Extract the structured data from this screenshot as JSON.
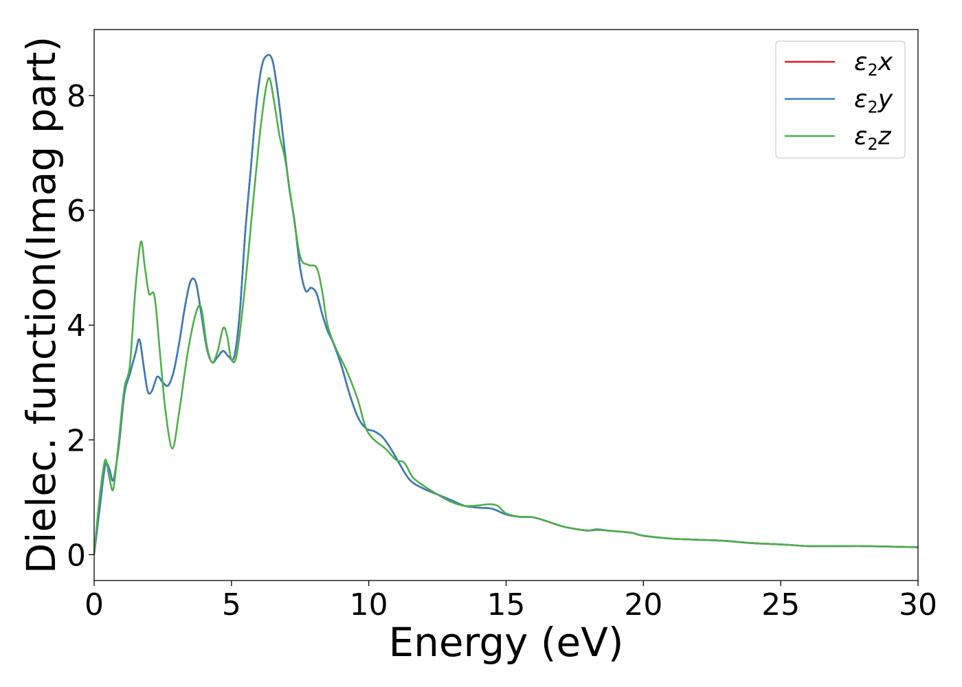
{
  "chart_data": {
    "type": "line",
    "title": "",
    "xlabel": "Energy (eV)",
    "ylabel": "Dielec. function(Imag part)",
    "xlim": [
      0,
      30
    ],
    "ylim": [
      -0.45,
      9.15
    ],
    "xticks": [
      0,
      5,
      10,
      15,
      20,
      25,
      30
    ],
    "xtick_labels": [
      "0",
      "5",
      "10",
      "15",
      "20",
      "25",
      "30"
    ],
    "yticks": [
      0,
      2,
      4,
      6,
      8
    ],
    "ytick_labels": [
      "0",
      "2",
      "4",
      "6",
      "8"
    ],
    "grid": false,
    "legend_position": "top-right",
    "series": [
      {
        "name": "ε2x",
        "legend_base": "ε",
        "legend_sub": "2",
        "legend_suffix": "x",
        "color": "#e41a1c",
        "x": [
          0,
          0.2,
          0.4,
          0.55,
          0.7,
          0.9,
          1.1,
          1.3,
          1.5,
          1.65,
          1.8,
          1.95,
          2.1,
          2.3,
          2.5,
          2.7,
          2.9,
          3.1,
          3.3,
          3.5,
          3.7,
          3.9,
          4.1,
          4.3,
          4.5,
          4.7,
          4.9,
          5.1,
          5.3,
          5.5,
          5.7,
          5.9,
          6.1,
          6.3,
          6.5,
          6.7,
          6.9,
          7.1,
          7.3,
          7.5,
          7.7,
          7.9,
          8.1,
          8.3,
          8.5,
          8.7,
          9.0,
          9.3,
          9.6,
          9.9,
          10.2,
          10.5,
          10.8,
          11.1,
          11.5,
          12.0,
          12.5,
          13.0,
          13.5,
          14.0,
          14.5,
          15.0,
          15.5,
          16.0,
          16.5,
          17.0,
          17.5,
          18.0,
          18.3,
          18.7,
          19.2,
          19.6,
          20.0,
          21.0,
          22.0,
          23.0,
          24.0,
          25.0,
          26.0,
          27.0,
          27.6,
          28.0,
          29.0,
          30.0
        ],
        "y": [
          0,
          0.8,
          1.55,
          1.5,
          1.3,
          1.9,
          2.8,
          3.15,
          3.5,
          3.75,
          3.3,
          2.85,
          2.85,
          3.1,
          3.0,
          2.95,
          3.2,
          3.7,
          4.3,
          4.75,
          4.75,
          4.2,
          3.6,
          3.35,
          3.45,
          3.55,
          3.45,
          3.45,
          4.2,
          5.6,
          6.7,
          7.8,
          8.5,
          8.7,
          8.6,
          8.0,
          7.2,
          6.4,
          5.8,
          5.0,
          4.6,
          4.65,
          4.55,
          4.2,
          3.9,
          3.7,
          3.3,
          2.8,
          2.4,
          2.2,
          2.15,
          2.05,
          1.85,
          1.6,
          1.3,
          1.15,
          1.05,
          0.95,
          0.85,
          0.82,
          0.8,
          0.7,
          0.66,
          0.65,
          0.58,
          0.5,
          0.45,
          0.42,
          0.44,
          0.42,
          0.4,
          0.38,
          0.33,
          0.28,
          0.26,
          0.24,
          0.2,
          0.18,
          0.15,
          0.15,
          0.15,
          0.15,
          0.14,
          0.13
        ]
      },
      {
        "name": "ε2y",
        "legend_base": "ε",
        "legend_sub": "2",
        "legend_suffix": "y",
        "color": "#377eb8",
        "x": [
          0,
          0.2,
          0.4,
          0.55,
          0.7,
          0.9,
          1.1,
          1.3,
          1.5,
          1.65,
          1.8,
          1.95,
          2.1,
          2.3,
          2.5,
          2.7,
          2.9,
          3.1,
          3.3,
          3.5,
          3.7,
          3.9,
          4.1,
          4.3,
          4.5,
          4.7,
          4.9,
          5.1,
          5.3,
          5.5,
          5.7,
          5.9,
          6.1,
          6.3,
          6.5,
          6.7,
          6.9,
          7.1,
          7.3,
          7.5,
          7.7,
          7.9,
          8.1,
          8.3,
          8.5,
          8.7,
          9.0,
          9.3,
          9.6,
          9.9,
          10.2,
          10.5,
          10.8,
          11.1,
          11.5,
          12.0,
          12.5,
          13.0,
          13.5,
          14.0,
          14.5,
          15.0,
          15.5,
          16.0,
          16.5,
          17.0,
          17.5,
          18.0,
          18.3,
          18.7,
          19.2,
          19.6,
          20.0,
          21.0,
          22.0,
          23.0,
          24.0,
          25.0,
          26.0,
          27.0,
          27.6,
          28.0,
          29.0,
          30.0
        ],
        "y": [
          0,
          0.8,
          1.55,
          1.5,
          1.3,
          1.9,
          2.8,
          3.15,
          3.5,
          3.75,
          3.3,
          2.85,
          2.85,
          3.1,
          3.0,
          2.95,
          3.2,
          3.7,
          4.3,
          4.75,
          4.75,
          4.2,
          3.6,
          3.35,
          3.45,
          3.55,
          3.45,
          3.45,
          4.2,
          5.6,
          6.7,
          7.8,
          8.5,
          8.7,
          8.6,
          8.0,
          7.2,
          6.4,
          5.8,
          5.0,
          4.6,
          4.65,
          4.55,
          4.2,
          3.9,
          3.7,
          3.3,
          2.8,
          2.4,
          2.2,
          2.15,
          2.05,
          1.85,
          1.6,
          1.3,
          1.15,
          1.05,
          0.95,
          0.85,
          0.82,
          0.8,
          0.7,
          0.66,
          0.65,
          0.58,
          0.5,
          0.45,
          0.42,
          0.44,
          0.42,
          0.4,
          0.38,
          0.33,
          0.28,
          0.26,
          0.24,
          0.2,
          0.18,
          0.15,
          0.15,
          0.15,
          0.15,
          0.14,
          0.13
        ]
      },
      {
        "name": "ε2z",
        "legend_base": "ε",
        "legend_sub": "2",
        "legend_suffix": "z",
        "color": "#4daf4a",
        "x": [
          0,
          0.2,
          0.4,
          0.55,
          0.7,
          0.9,
          1.1,
          1.3,
          1.5,
          1.7,
          1.85,
          2.0,
          2.2,
          2.4,
          2.6,
          2.85,
          3.1,
          3.4,
          3.7,
          3.9,
          4.1,
          4.3,
          4.5,
          4.7,
          4.85,
          5.0,
          5.2,
          5.5,
          5.8,
          6.1,
          6.35,
          6.55,
          6.75,
          6.95,
          7.2,
          7.5,
          7.8,
          8.1,
          8.3,
          8.5,
          8.8,
          9.2,
          9.6,
          9.9,
          10.2,
          10.6,
          11.0,
          11.3,
          11.6,
          12.0,
          12.5,
          13.0,
          13.5,
          14.0,
          14.4,
          14.7,
          15.0,
          15.5,
          16.0,
          16.5,
          17.0,
          17.5,
          18.0,
          18.3,
          18.7,
          19.2,
          19.6,
          20.0,
          21.0,
          22.0,
          23.0,
          24.0,
          25.0,
          26.0,
          27.0,
          27.6,
          28.0,
          29.0,
          30.0
        ],
        "y": [
          0,
          1.0,
          1.65,
          1.35,
          1.15,
          2.0,
          2.9,
          3.3,
          4.6,
          5.45,
          5.0,
          4.55,
          4.5,
          3.5,
          2.5,
          1.85,
          2.5,
          3.5,
          4.2,
          4.3,
          3.65,
          3.35,
          3.55,
          3.95,
          3.8,
          3.4,
          3.5,
          4.7,
          6.2,
          7.6,
          8.3,
          7.9,
          7.3,
          6.9,
          6.1,
          5.2,
          5.05,
          5.0,
          4.6,
          4.0,
          3.6,
          3.2,
          2.7,
          2.2,
          2.0,
          1.85,
          1.65,
          1.6,
          1.35,
          1.2,
          1.05,
          0.92,
          0.85,
          0.86,
          0.88,
          0.85,
          0.72,
          0.66,
          0.65,
          0.58,
          0.5,
          0.45,
          0.42,
          0.43,
          0.42,
          0.4,
          0.38,
          0.33,
          0.28,
          0.26,
          0.24,
          0.2,
          0.18,
          0.15,
          0.15,
          0.15,
          0.15,
          0.14,
          0.13
        ]
      }
    ]
  }
}
